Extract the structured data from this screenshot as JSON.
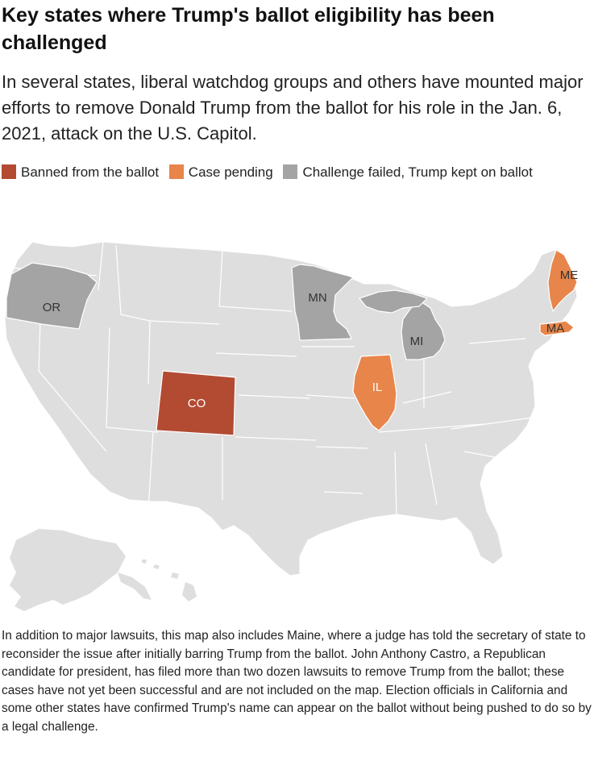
{
  "title": "Key states where Trump's ballot eligibility has been challenged",
  "subtitle": "In several states, liberal watchdog groups and others have mounted major efforts to remove Donald Trump from the ballot for his role in the Jan. 6, 2021, attack on the U.S. Capitol.",
  "legend": [
    {
      "label": "Banned from the ballot",
      "color": "#b24b32"
    },
    {
      "label": "Case pending",
      "color": "#e8854a"
    },
    {
      "label": "Challenge failed, Trump kept on ballot",
      "color": "#a4a4a4"
    }
  ],
  "colors": {
    "banned": "#b24b32",
    "pending": "#e8854a",
    "failed": "#a4a4a4",
    "other": "#dedede",
    "border": "#ffffff"
  },
  "map": {
    "states": [
      {
        "code": "CO",
        "status": "banned",
        "label": "CO"
      },
      {
        "code": "IL",
        "status": "pending",
        "label": "IL"
      },
      {
        "code": "ME",
        "status": "pending",
        "label": "ME"
      },
      {
        "code": "MA",
        "status": "pending",
        "label": "MA"
      },
      {
        "code": "OR",
        "status": "failed",
        "label": "OR"
      },
      {
        "code": "MN",
        "status": "failed",
        "label": "MN"
      },
      {
        "code": "MI",
        "status": "failed",
        "label": "MI"
      }
    ]
  },
  "note": "In addition to major lawsuits, this map also includes Maine, where a judge has told the secretary of state to reconsider the issue after initially barring Trump from the ballot. John Anthony Castro, a Republican candidate for president, has filed more than two dozen lawsuits to remove Trump from the ballot; these cases have not yet been successful and are not included on the map. Election officials in California and some other states have confirmed Trump's name can appear on the ballot without being pushed to do so by a legal challenge."
}
